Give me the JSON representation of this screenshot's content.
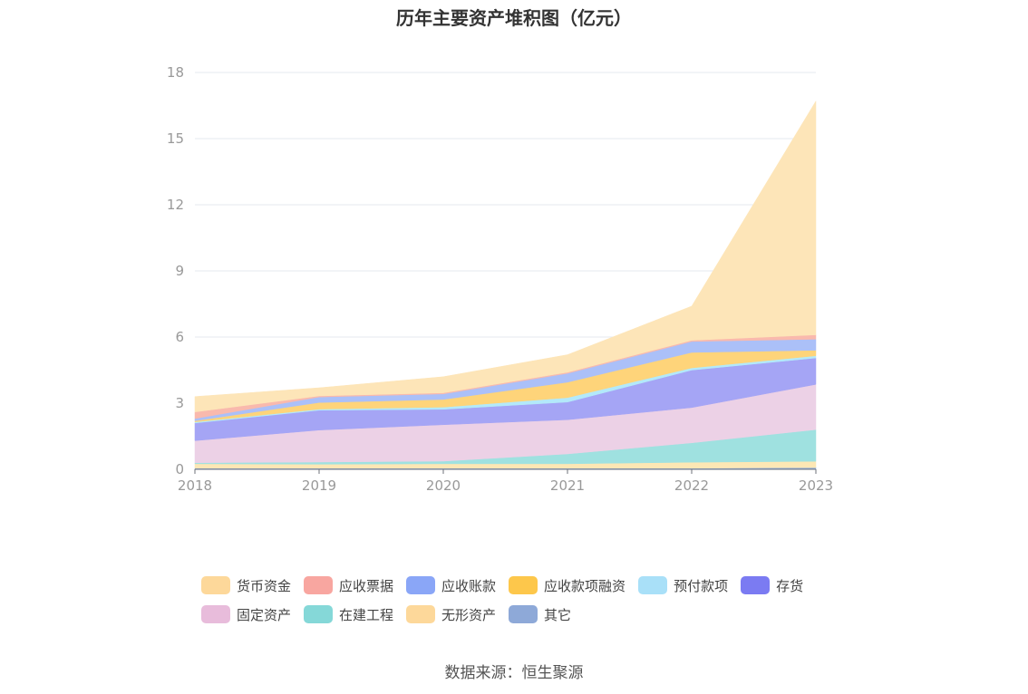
{
  "chart_data": {
    "type": "area",
    "stacked": true,
    "title": "历年主要资产堆积图（亿元）",
    "categories": [
      "2018",
      "2019",
      "2020",
      "2021",
      "2022",
      "2023"
    ],
    "ylim": [
      0,
      18
    ],
    "yticks": [
      0,
      3,
      6,
      9,
      12,
      15,
      18
    ],
    "grid": true,
    "legend_position": "bottom",
    "series": [
      {
        "name": "其它",
        "color": "#8eaedd",
        "values": [
          0.05,
          0.05,
          0.05,
          0.05,
          0.05,
          0.08
        ]
      },
      {
        "name": "无形资产",
        "color": "#fde7b4",
        "values": [
          0.2,
          0.18,
          0.2,
          0.2,
          0.27,
          0.28
        ]
      },
      {
        "name": "在建工程",
        "color": "#9fe1e0",
        "values": [
          0.05,
          0.1,
          0.12,
          0.45,
          0.88,
          1.44
        ]
      },
      {
        "name": "固定资产",
        "color": "#ecd1e6",
        "values": [
          1.0,
          1.45,
          1.65,
          1.55,
          1.6,
          2.05
        ]
      },
      {
        "name": "存货",
        "color": "#a5a5f5",
        "values": [
          0.8,
          0.9,
          0.7,
          0.8,
          1.7,
          1.2
        ]
      },
      {
        "name": "预付款项",
        "color": "#b3e9fa",
        "values": [
          0.05,
          0.05,
          0.1,
          0.2,
          0.1,
          0.1
        ]
      },
      {
        "name": "应收款项融资",
        "color": "#fed47a",
        "values": [
          0.05,
          0.3,
          0.35,
          0.7,
          0.7,
          0.25
        ]
      },
      {
        "name": "应收账款",
        "color": "#abc0f8",
        "values": [
          0.1,
          0.25,
          0.25,
          0.4,
          0.5,
          0.5
        ]
      },
      {
        "name": "应收票据",
        "color": "#f9b9ad",
        "values": [
          0.3,
          0.05,
          0.05,
          0.05,
          0.05,
          0.2
        ]
      },
      {
        "name": "货币资金",
        "color": "#fde5b8",
        "values": [
          0.7,
          0.37,
          0.73,
          0.8,
          1.55,
          10.6
        ]
      }
    ],
    "legend_order": [
      "货币资金",
      "应收票据",
      "应收账款",
      "应收款项融资",
      "预付款项",
      "存货",
      "固定资产",
      "在建工程",
      "无形资产",
      "其它"
    ],
    "legend_colors": {
      "货币资金": "#fdd89a",
      "应收票据": "#f8a6a0",
      "应收账款": "#8aa6f7",
      "应收款项融资": "#fdc74b",
      "预付款项": "#a9e0f8",
      "存货": "#7b7bf2",
      "固定资产": "#e8bcdb",
      "在建工程": "#85d8d8",
      "无形资产": "#fdd89a",
      "其它": "#8ea9d8"
    }
  },
  "source": "数据来源：恒生聚源"
}
